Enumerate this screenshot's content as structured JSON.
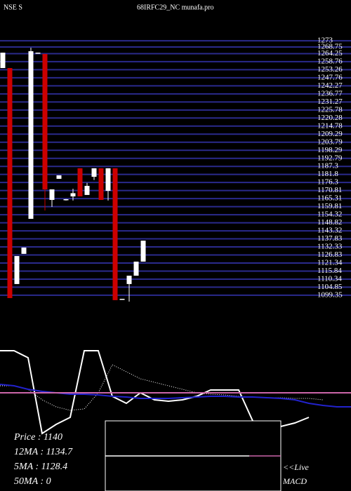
{
  "chart_data": [
    {
      "type": "candlestick",
      "exchange": "NSE S",
      "title": "68IRFC29_NC munafa.pro",
      "up_color": "#ffffff",
      "down_color": "#cc0000",
      "grid": true,
      "grid_color": "#2a2a8c",
      "ylim": [
        1095,
        1275
      ],
      "yticks": [
        1099.35,
        1104.85,
        1110.34,
        1115.84,
        1121.34,
        1126.83,
        1132.33,
        1137.83,
        1143.32,
        1148.82,
        1154.32,
        1159.81,
        1165.31,
        1170.81,
        1176.3,
        1181.8,
        1187.3,
        1192.79,
        1198.29,
        1203.79,
        1209.29,
        1214.78,
        1220.28,
        1225.78,
        1231.27,
        1236.77,
        1242.27,
        1247.76,
        1253.26,
        1258.76,
        1264.25,
        1268.75,
        1273
      ],
      "candles": [
        {
          "open": 1254.4,
          "high": 1264.9,
          "low": 1254.4,
          "close": 1264.9
        },
        {
          "open": 1254.4,
          "high": 1254.4,
          "low": 1097.4,
          "close": 1097.4
        },
        {
          "open": 1107,
          "high": 1126.1,
          "low": 1107,
          "close": 1126.1
        },
        {
          "open": 1127.6,
          "high": 1131.9,
          "low": 1127.6,
          "close": 1131.9
        },
        {
          "open": 1151.5,
          "high": 1268.3,
          "low": 1151.5,
          "close": 1265.9
        },
        {
          "open": 1264.4,
          "high": 1264.9,
          "low": 1264.4,
          "close": 1264.9
        },
        {
          "open": 1264,
          "high": 1264,
          "low": 1157.2,
          "close": 1171.6
        },
        {
          "open": 1164.4,
          "high": 1171.6,
          "low": 1159.6,
          "close": 1171.6
        },
        {
          "open": 1178.8,
          "high": 1181.2,
          "low": 1178.8,
          "close": 1181.2
        },
        {
          "open": 1164.4,
          "high": 1165,
          "low": 1164,
          "close": 1164.9
        },
        {
          "open": 1166.8,
          "high": 1172,
          "low": 1164,
          "close": 1169
        },
        {
          "open": 1186,
          "high": 1186,
          "low": 1166.8,
          "close": 1166.8
        },
        {
          "open": 1167.8,
          "high": 1176,
          "low": 1167.8,
          "close": 1174
        },
        {
          "open": 1180.2,
          "high": 1186,
          "low": 1178,
          "close": 1186
        },
        {
          "open": 1186,
          "high": 1186,
          "low": 1164.4,
          "close": 1164.4
        },
        {
          "open": 1170.6,
          "high": 1186,
          "low": 1164,
          "close": 1186
        },
        {
          "open": 1186,
          "high": 1186,
          "low": 1096,
          "close": 1096
        },
        {
          "open": 1096.4,
          "high": 1096.9,
          "low": 1096.4,
          "close": 1096.9
        },
        {
          "open": 1107,
          "high": 1112.7,
          "low": 1095,
          "close": 1112.7
        },
        {
          "open": 1112.7,
          "high": 1122.3,
          "low": 1112.7,
          "close": 1122.3
        },
        {
          "open": 1122.3,
          "high": 1136.6,
          "low": 1122.3,
          "close": 1136.6
        }
      ]
    },
    {
      "type": "line",
      "ylim": [
        -25,
        100
      ],
      "series": [
        {
          "color": "#ffffff",
          "style": "solid",
          "values": [
            100,
            100,
            90,
            -18,
            -5,
            5,
            100,
            100,
            35,
            25,
            40,
            30,
            28,
            30,
            35,
            44,
            44,
            44,
            0,
            -10,
            -8,
            -3,
            5,
            null,
            null,
            null
          ]
        },
        {
          "color": "#ffffff",
          "style": "dotted",
          "values": [
            50,
            50,
            45,
            30,
            20,
            15,
            17,
            40,
            80,
            70,
            60,
            55,
            50,
            45,
            40,
            38,
            37,
            35,
            34,
            33,
            33,
            32,
            32,
            30,
            null,
            null
          ]
        },
        {
          "color": "#2222cc",
          "style": "solid",
          "values": [
            52,
            50,
            45,
            42,
            40,
            38,
            38,
            37,
            35,
            34,
            32,
            32,
            32,
            33,
            34,
            35,
            35,
            34,
            34,
            33,
            32,
            30,
            25,
            22,
            20,
            20
          ]
        },
        {
          "color": "#cc66aa",
          "style": "solid",
          "values": [
            40,
            40,
            40,
            40,
            40,
            40,
            40,
            40,
            40,
            40,
            40,
            40,
            40,
            40,
            40,
            40,
            40,
            40,
            40,
            40,
            40,
            40,
            40,
            40,
            40,
            40
          ]
        }
      ],
      "stats": [
        "Price   : 1140",
        "12MA : 1134.7",
        "5MA : 1128.4",
        "50MA : 0"
      ],
      "live": "<<Live",
      "indicator": "MACD"
    }
  ]
}
